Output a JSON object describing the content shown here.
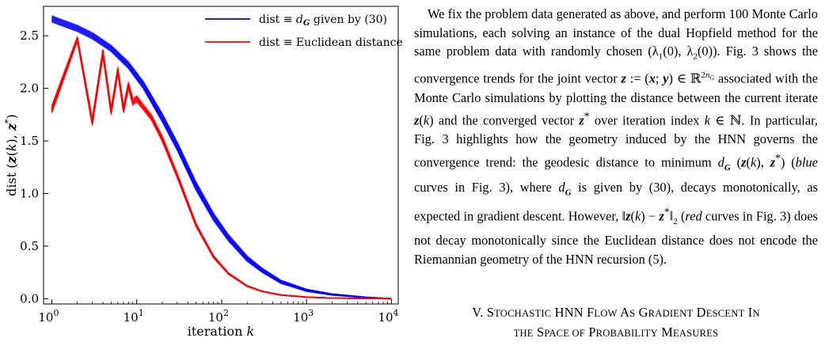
{
  "chart_data": {
    "type": "line",
    "xlabel": "iteration k",
    "ylabel": "dist (z(k), z*)",
    "xscale": "log",
    "xlim": [
      0.8,
      12000
    ],
    "ylim": [
      -0.05,
      2.78
    ],
    "x_ticks": [
      1,
      10,
      100,
      1000,
      10000
    ],
    "x_tick_labels": [
      "10^0",
      "10^1",
      "10^2",
      "10^3",
      "10^4"
    ],
    "y_ticks": [
      0.0,
      0.5,
      1.0,
      1.5,
      2.0,
      2.5
    ],
    "y_tick_labels": [
      "0.0",
      "0.5",
      "1.0",
      "1.5",
      "2.0",
      "2.5"
    ],
    "grid": false,
    "legend_position": "top-right",
    "num_runs_per_series": 100,
    "series": [
      {
        "name": "dist ≡ d_G given by (30)",
        "color": "#0000ff",
        "x": [
          1,
          2,
          3,
          5,
          8,
          12,
          20,
          30,
          50,
          80,
          120,
          200,
          300,
          500,
          1000,
          2000,
          5000,
          10000
        ],
        "y": [
          2.66,
          2.57,
          2.5,
          2.38,
          2.22,
          2.03,
          1.72,
          1.45,
          1.07,
          0.78,
          0.58,
          0.38,
          0.27,
          0.16,
          0.08,
          0.04,
          0.012,
          0.0
        ],
        "spread": [
          0.06,
          0.06,
          0.06,
          0.06,
          0.065,
          0.07,
          0.08,
          0.08,
          0.08,
          0.07,
          0.06,
          0.05,
          0.04,
          0.03,
          0.02,
          0.012,
          0.005,
          0.0
        ]
      },
      {
        "name": "dist ≡ Euclidean distance",
        "color": "#ff0000",
        "x": [
          1,
          2,
          3,
          4,
          5,
          6,
          7,
          8,
          9,
          10,
          12,
          15,
          20,
          30,
          50,
          80,
          120,
          200,
          300,
          500,
          1000,
          2000,
          5000,
          10000
        ],
        "y": [
          1.8,
          2.47,
          1.68,
          2.34,
          1.78,
          2.17,
          1.8,
          2.03,
          1.87,
          1.9,
          1.82,
          1.72,
          1.52,
          1.17,
          0.7,
          0.4,
          0.24,
          0.12,
          0.07,
          0.035,
          0.015,
          0.006,
          0.002,
          0.0
        ],
        "spread": [
          0.07,
          0.04,
          0.06,
          0.06,
          0.06,
          0.06,
          0.06,
          0.06,
          0.06,
          0.06,
          0.05,
          0.05,
          0.05,
          0.04,
          0.03,
          0.02,
          0.012,
          0.008,
          0.005,
          0.003,
          0.002,
          0.001,
          0.0,
          0.0
        ]
      }
    ]
  },
  "text": {
    "paragraph": "We fix the problem data generated as above, and perform 100 Monte Carlo simulations, each solving an instance of the dual Hopfield method for the same problem data with randomly chosen (λ₁(0), λ₂(0)). Fig. 3 shows the convergence trends for the joint vector z := (x; y) ∈ ℝ^{2n_G} associated with the Monte Carlo simulations by plotting the distance between the current iterate z(k) and the converged vector z* over iteration index k ∈ ℕ. In particular, Fig. 3 highlights how the geometry induced by the HNN governs the convergence trend: the geodesic distance to minimum d_G(z(k), z*) (blue curves in Fig. 3), where d_G is given by (30), decays monotonically, as expected in gradient descent. However, ‖z(k) − z*‖₂ (red curves in Fig. 3) does not decay monotonically since the Euclidean distance does not encode the Riemannian geometry of the HNN recursion (5).",
    "heading_lines": [
      "V. Stochastic HNN Flow As Gradient Descent In",
      "the Space of Probability Measures"
    ]
  }
}
